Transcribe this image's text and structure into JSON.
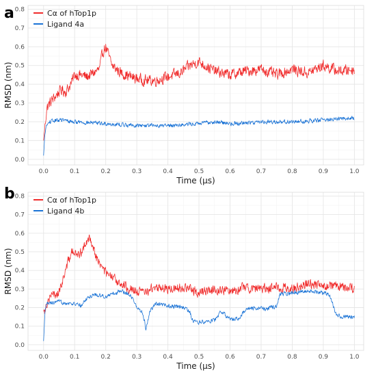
{
  "chart_data": [
    {
      "panel": "a",
      "type": "line",
      "xlabel": "Time (µs)",
      "ylabel": "RMSD (nm)",
      "xlim": [
        -0.05,
        1.03
      ],
      "ylim": [
        -0.03,
        0.82
      ],
      "xticks": [
        "0.0",
        "0.1",
        "0.2",
        "0.3",
        "0.4",
        "0.5",
        "0.6",
        "0.7",
        "0.8",
        "0.9",
        "1.0"
      ],
      "yticks": [
        "0.0",
        "0.1",
        "0.2",
        "0.3",
        "0.4",
        "0.5",
        "0.6",
        "0.7",
        "0.8"
      ],
      "grid": true,
      "legend_position": "top-left",
      "series": [
        {
          "name": "Cα of hTop1p",
          "color": "#f02a2a",
          "x": [
            0,
            0.01,
            0.02,
            0.03,
            0.04,
            0.05,
            0.06,
            0.07,
            0.08,
            0.09,
            0.1,
            0.12,
            0.14,
            0.16,
            0.18,
            0.19,
            0.2,
            0.22,
            0.25,
            0.28,
            0.3,
            0.33,
            0.36,
            0.4,
            0.44,
            0.47,
            0.5,
            0.55,
            0.6,
            0.65,
            0.7,
            0.75,
            0.8,
            0.85,
            0.9,
            0.95,
            1.0
          ],
          "y": [
            0.1,
            0.27,
            0.3,
            0.32,
            0.34,
            0.36,
            0.37,
            0.36,
            0.38,
            0.41,
            0.45,
            0.45,
            0.44,
            0.46,
            0.48,
            0.57,
            0.6,
            0.5,
            0.46,
            0.44,
            0.43,
            0.42,
            0.42,
            0.44,
            0.46,
            0.5,
            0.52,
            0.47,
            0.45,
            0.47,
            0.48,
            0.45,
            0.48,
            0.46,
            0.5,
            0.47,
            0.48
          ],
          "noise": 0.04
        },
        {
          "name": "Ligand 4a",
          "color": "#1a73d6",
          "x": [
            0,
            0.005,
            0.01,
            0.02,
            0.05,
            0.1,
            0.2,
            0.3,
            0.4,
            0.5,
            0.55,
            0.6,
            0.7,
            0.8,
            0.9,
            1.0
          ],
          "y": [
            0.02,
            0.15,
            0.18,
            0.2,
            0.21,
            0.2,
            0.19,
            0.18,
            0.18,
            0.19,
            0.2,
            0.19,
            0.2,
            0.2,
            0.21,
            0.22
          ],
          "noise": 0.015
        }
      ]
    },
    {
      "panel": "b",
      "type": "line",
      "xlabel": "Time (µs)",
      "ylabel": "RMSD (nm)",
      "xlim": [
        -0.05,
        1.03
      ],
      "ylim": [
        -0.03,
        0.82
      ],
      "xticks": [
        "0.0",
        "0.1",
        "0.2",
        "0.3",
        "0.4",
        "0.5",
        "0.6",
        "0.7",
        "0.8",
        "0.9",
        "1.0"
      ],
      "yticks": [
        "0.0",
        "0.1",
        "0.2",
        "0.3",
        "0.4",
        "0.5",
        "0.6",
        "0.7",
        "0.8"
      ],
      "grid": true,
      "legend_position": "top-left",
      "series": [
        {
          "name": "Cα of hTop1p",
          "color": "#f02a2a",
          "x": [
            0,
            0.02,
            0.05,
            0.07,
            0.09,
            0.11,
            0.13,
            0.15,
            0.17,
            0.19,
            0.21,
            0.25,
            0.28,
            0.32,
            0.36,
            0.4,
            0.45,
            0.5,
            0.55,
            0.6,
            0.65,
            0.7,
            0.75,
            0.8,
            0.85,
            0.9,
            0.95,
            1.0
          ],
          "y": [
            0.18,
            0.26,
            0.28,
            0.4,
            0.5,
            0.48,
            0.52,
            0.58,
            0.47,
            0.41,
            0.37,
            0.33,
            0.3,
            0.28,
            0.31,
            0.3,
            0.31,
            0.28,
            0.3,
            0.29,
            0.31,
            0.3,
            0.31,
            0.3,
            0.33,
            0.32,
            0.31,
            0.3
          ],
          "noise": 0.035
        },
        {
          "name": "Ligand 4b",
          "color": "#1a73d6",
          "x": [
            0,
            0.005,
            0.01,
            0.05,
            0.1,
            0.12,
            0.14,
            0.16,
            0.2,
            0.25,
            0.28,
            0.3,
            0.32,
            0.33,
            0.34,
            0.36,
            0.4,
            0.45,
            0.47,
            0.48,
            0.5,
            0.53,
            0.55,
            0.57,
            0.6,
            0.63,
            0.65,
            0.7,
            0.72,
            0.75,
            0.76,
            0.8,
            0.85,
            0.9,
            0.92,
            0.94,
            0.96,
            1.0
          ],
          "y": [
            0.02,
            0.18,
            0.22,
            0.23,
            0.22,
            0.21,
            0.25,
            0.27,
            0.26,
            0.29,
            0.27,
            0.2,
            0.17,
            0.08,
            0.17,
            0.22,
            0.21,
            0.2,
            0.18,
            0.13,
            0.12,
            0.13,
            0.13,
            0.18,
            0.14,
            0.14,
            0.19,
            0.2,
            0.19,
            0.21,
            0.27,
            0.28,
            0.29,
            0.28,
            0.27,
            0.17,
            0.15,
            0.15
          ],
          "noise": 0.015
        }
      ]
    }
  ]
}
